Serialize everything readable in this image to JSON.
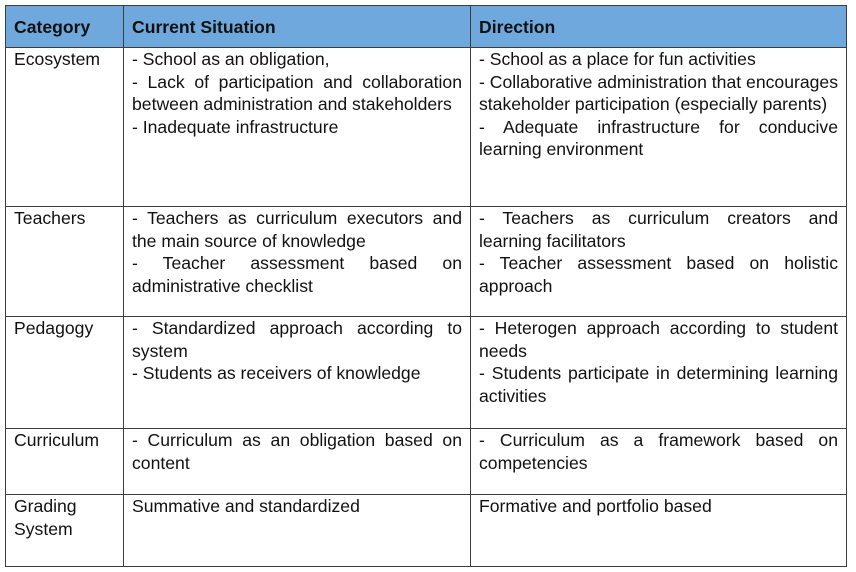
{
  "table": {
    "headers": [
      "Category",
      "Current Situation",
      "Direction"
    ],
    "rows": [
      {
        "category": "Ecosystem",
        "current": [
          "- School as an obligation,",
          "- Lack of participation and collaboration between administration and stakeholders",
          "- Inadequate infrastructure"
        ],
        "direction": [
          "- School as a place for fun activities",
          "- Collaborative administration that encourages stakeholder participation (especially parents)",
          "- Adequate infrastructure for conducive learning environment"
        ]
      },
      {
        "category": "Teachers",
        "current": [
          "- Teachers as curriculum executors and the main source of knowledge",
          "- Teacher assessment based on administrative checklist"
        ],
        "direction": [
          "- Teachers as curriculum creators and learning facilitators",
          "- Teacher assessment based on holistic approach"
        ]
      },
      {
        "category": "Pedagogy",
        "current": [
          "- Standardized approach according to system",
          "- Students as receivers of knowledge"
        ],
        "direction": [
          "- Heterogen approach according to student needs",
          "- Students participate in determining learning activities"
        ]
      },
      {
        "category": "Curriculum",
        "current": [
          "- Curriculum as an obligation based on content"
        ],
        "direction": [
          "- Curriculum as a framework based on competencies"
        ]
      },
      {
        "category": "Grading System",
        "current": [
          "Summative and standardized"
        ],
        "direction": [
          "Formative and portfolio based"
        ]
      }
    ]
  }
}
